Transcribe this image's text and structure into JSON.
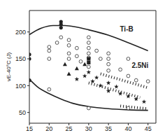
{
  "chart_data": {
    "type": "scatter",
    "y_label": "vE-40°C (J)",
    "xlim": [
      15,
      47
    ],
    "ylim": [
      30,
      240
    ],
    "xticks": [
      15,
      20,
      25,
      30,
      35,
      40,
      45
    ],
    "yticks": [
      50,
      100,
      150,
      200
    ],
    "grid": false,
    "series": [
      {
        "type": "line",
        "line_style": "solid",
        "color": "#222222",
        "x": [
          15,
          18,
          21,
          24,
          27,
          30,
          35,
          40,
          45
        ],
        "values": [
          195,
          207,
          212,
          212,
          209,
          204,
          194,
          180,
          165
        ]
      },
      {
        "type": "line",
        "line_style": "solid",
        "color": "#222222",
        "x": [
          15,
          17,
          20,
          23,
          26,
          30,
          35,
          40,
          45
        ],
        "values": [
          112,
          98,
          85,
          75,
          67,
          61,
          57,
          55,
          54
        ]
      },
      {
        "type": "line",
        "line_style": "dashed",
        "color": "#222222",
        "x": [
          33,
          45
        ],
        "values": [
          122,
          96
        ]
      },
      {
        "type": "line",
        "line_style": "dashed",
        "color": "#222222",
        "x": [
          30,
          43
        ],
        "values": [
          105,
          78
        ]
      },
      {
        "type": "line",
        "line_style": "dashed",
        "color": "#222222",
        "x": [
          38,
          45
        ],
        "values": [
          62,
          57
        ]
      },
      {
        "type": "scatter",
        "marker": "filled_circle",
        "color": "#222222",
        "x": [
          15,
          15,
          15,
          23,
          23,
          23
        ],
        "values": [
          158,
          150,
          110,
          219,
          214,
          208
        ]
      },
      {
        "type": "scatter",
        "marker": "open_circle",
        "color": "#444444",
        "x": [
          20,
          20,
          20,
          22,
          23,
          25,
          25,
          25,
          25,
          27,
          27,
          28,
          30,
          30,
          30,
          30,
          30,
          30,
          32,
          33,
          35,
          35,
          35,
          35,
          38,
          40,
          40,
          42,
          45,
          20,
          30,
          40
        ],
        "values": [
          172,
          165,
          150,
          180,
          190,
          185,
          175,
          160,
          150,
          170,
          155,
          145,
          190,
          180,
          170,
          160,
          152,
          135,
          165,
          150,
          160,
          150,
          140,
          128,
          130,
          150,
          118,
          110,
          108,
          93,
          58,
          58
        ]
      },
      {
        "type": "scatter",
        "marker": "triangle",
        "color": "#222222",
        "x": [
          24,
          25,
          27,
          29
        ],
        "values": [
          140,
          122,
          132,
          140
        ]
      },
      {
        "type": "scatter",
        "marker": "square",
        "color": "#222222",
        "x": [
          30,
          30
        ],
        "values": [
          150,
          143
        ]
      },
      {
        "type": "scatter",
        "marker": "star",
        "color": "#222222",
        "x": [
          27,
          29,
          30,
          31,
          32,
          33,
          35,
          35,
          37,
          38,
          40,
          42,
          44
        ],
        "values": [
          112,
          118,
          125,
          108,
          115,
          100,
          105,
          90,
          98,
          85,
          80,
          75,
          70
        ]
      }
    ],
    "annotations": [
      {
        "text": "Ti-B",
        "x": 37,
        "y": 205
      },
      {
        "text": "2.5Ni",
        "x": 40,
        "y": 138
      }
    ]
  }
}
